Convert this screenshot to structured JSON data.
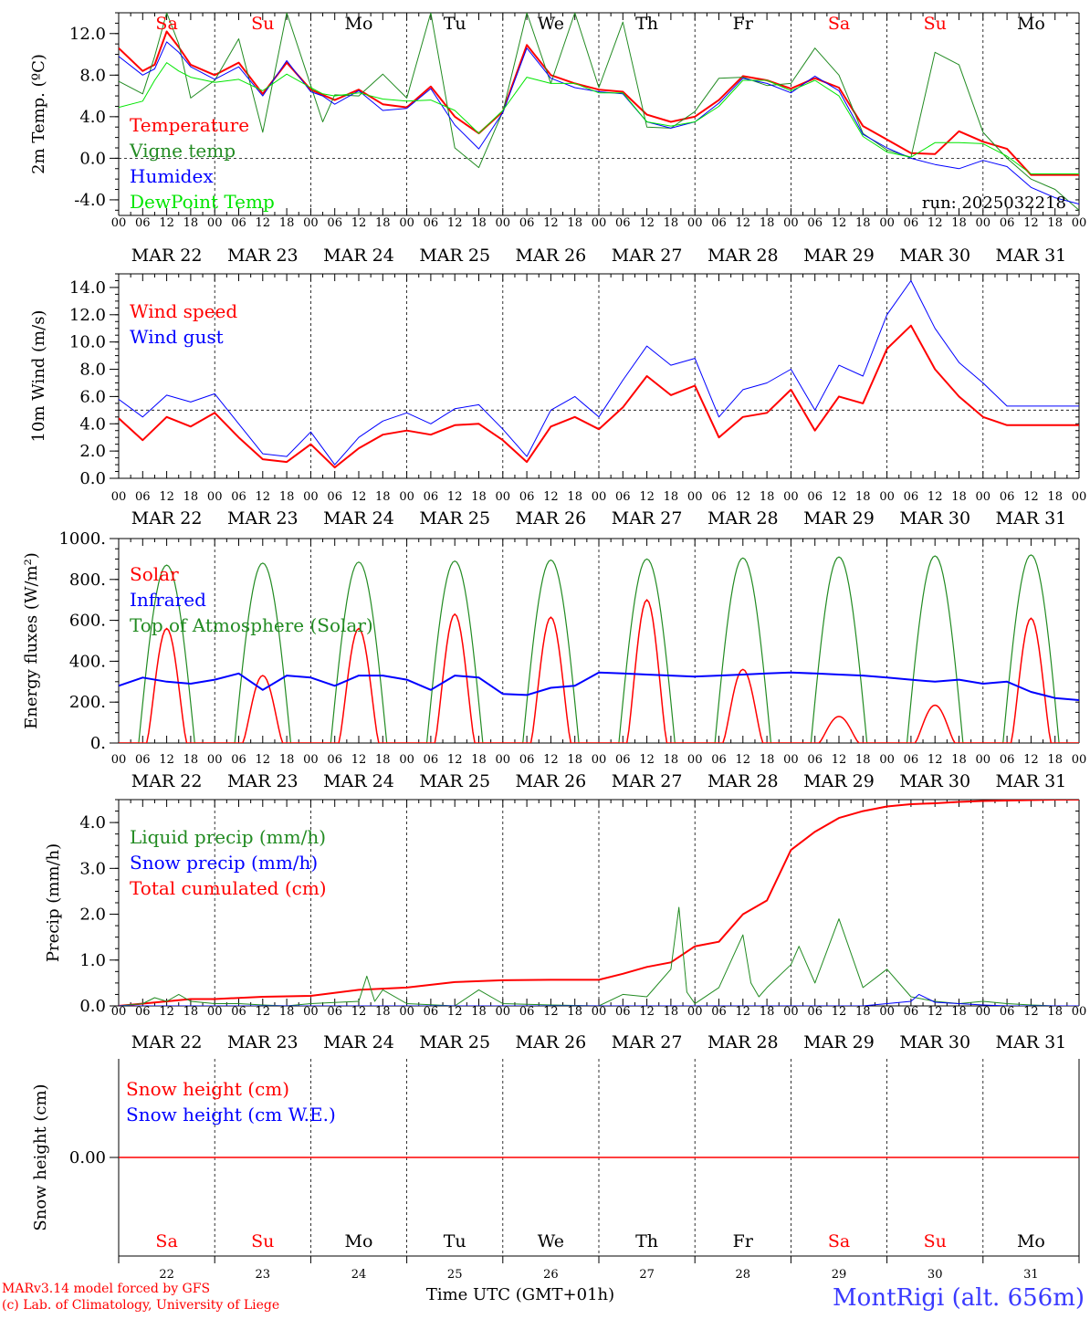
{
  "run_label": "run: 2025032218",
  "footer": {
    "model_line": "MARv3.14 model forced by GFS",
    "credit_line": "(c) Lab. of Climatology, University of Liege",
    "xlabel": "Time UTC (GMT+01h)",
    "station": "MontRigi (alt. 656m)"
  },
  "day_names": [
    {
      "label": "Sa",
      "color": "#ff0000"
    },
    {
      "label": "Su",
      "color": "#ff0000"
    },
    {
      "label": "Mo",
      "color": "#000000"
    },
    {
      "label": "Tu",
      "color": "#000000"
    },
    {
      "label": "We",
      "color": "#000000"
    },
    {
      "label": "Th",
      "color": "#000000"
    },
    {
      "label": "Fr",
      "color": "#000000"
    },
    {
      "label": "Sa",
      "color": "#ff0000"
    },
    {
      "label": "Su",
      "color": "#ff0000"
    },
    {
      "label": "Mo",
      "color": "#000000"
    }
  ],
  "date_labels": [
    "MAR 22",
    "MAR 23",
    "MAR 24",
    "MAR 25",
    "MAR 26",
    "MAR 27",
    "MAR 28",
    "MAR 29",
    "MAR 30",
    "MAR 31"
  ],
  "day_numbers": [
    "22",
    "23",
    "24",
    "25",
    "26",
    "27",
    "28",
    "29",
    "30",
    "31"
  ],
  "hour_ticks": [
    "00",
    "06",
    "12",
    "18"
  ],
  "hour_end": "00",
  "chart_data": [
    {
      "type": "line",
      "ylabel": "2m Temp. (ºC)",
      "ylim": [
        -5.5,
        14.0
      ],
      "yticks": [
        -4.0,
        0.0,
        4.0,
        8.0,
        12.0
      ],
      "ytick_labels": [
        "-4.0",
        "0.0",
        "4.0",
        "8.0",
        "12.0"
      ],
      "ref_line": 0.0,
      "x_unit": "hours since MAR 22 00 UTC",
      "legend": [
        {
          "label": "Temperature",
          "color": "#ff0000"
        },
        {
          "label": "Vigne temp",
          "color": "#228b22"
        },
        {
          "label": "Humidex",
          "color": "#0000ff"
        },
        {
          "label": "DewPoint Temp",
          "color": "#00e600"
        }
      ],
      "series": [
        {
          "name": "Temperature",
          "color": "#ff0000",
          "width": 2,
          "x": [
            0,
            6,
            9,
            12,
            15,
            18,
            24,
            30,
            36,
            42,
            48,
            51,
            54,
            60,
            66,
            72,
            78,
            84,
            90,
            96,
            102,
            108,
            114,
            120,
            126,
            132,
            138,
            144,
            150,
            156,
            162,
            168,
            174,
            180,
            186,
            192,
            198,
            204,
            210,
            216,
            222,
            228,
            234,
            240
          ],
          "y": [
            10.6,
            8.4,
            9.0,
            12.2,
            10.7,
            9.0,
            8.0,
            9.2,
            6.2,
            9.2,
            6.6,
            6.1,
            5.6,
            6.6,
            5.2,
            4.9,
            6.9,
            4.0,
            2.4,
            4.5,
            10.9,
            8.0,
            7.2,
            6.6,
            6.4,
            4.2,
            3.5,
            4.0,
            5.6,
            7.9,
            7.5,
            6.7,
            7.7,
            6.8,
            3.1,
            1.8,
            0.5,
            0.4,
            2.6,
            1.6,
            0.9,
            -1.6,
            -1.6,
            -1.6
          ]
        },
        {
          "name": "Vigne temp",
          "color": "#228b22",
          "width": 1,
          "x": [
            0,
            6,
            9,
            12,
            15,
            18,
            24,
            30,
            36,
            42,
            48,
            51,
            54,
            60,
            66,
            72,
            78,
            84,
            90,
            96,
            102,
            108,
            114,
            120,
            126,
            132,
            138,
            144,
            150,
            156,
            162,
            168,
            174,
            180,
            186,
            192,
            198,
            204,
            210,
            216,
            222,
            228,
            234,
            240
          ],
          "y": [
            7.4,
            6.2,
            9.8,
            14.0,
            11.0,
            5.8,
            7.5,
            11.5,
            2.5,
            14.0,
            7.0,
            3.5,
            6.1,
            6.0,
            8.1,
            5.8,
            14.0,
            1.0,
            -0.9,
            4.5,
            14.0,
            7.2,
            14.0,
            6.8,
            13.1,
            3.0,
            2.9,
            4.5,
            7.7,
            7.8,
            7.0,
            7.2,
            10.6,
            8.0,
            2.4,
            0.8,
            0.1,
            10.2,
            9.0,
            2.5,
            0.0,
            -2.0,
            -3.0,
            -5.0
          ]
        },
        {
          "name": "Humidex",
          "color": "#0000ff",
          "width": 1,
          "x": [
            0,
            6,
            9,
            12,
            15,
            18,
            24,
            30,
            36,
            42,
            48,
            51,
            54,
            60,
            66,
            72,
            78,
            84,
            90,
            96,
            102,
            108,
            114,
            120,
            126,
            132,
            138,
            144,
            150,
            156,
            162,
            168,
            174,
            180,
            186,
            192,
            198,
            204,
            210,
            216,
            222,
            228,
            234,
            240
          ],
          "y": [
            9.8,
            8.0,
            8.6,
            11.2,
            10.2,
            8.8,
            7.6,
            8.8,
            6.0,
            9.4,
            6.4,
            6.0,
            5.2,
            6.5,
            4.6,
            4.8,
            6.7,
            3.2,
            0.9,
            4.4,
            10.6,
            7.7,
            6.8,
            6.4,
            6.2,
            3.5,
            2.9,
            3.5,
            5.3,
            7.7,
            7.2,
            6.3,
            7.9,
            6.5,
            2.3,
            1.0,
            0.0,
            -0.6,
            -1.0,
            -0.2,
            -0.8,
            -2.8,
            -3.8,
            -4.4
          ]
        },
        {
          "name": "DewPoint Temp",
          "color": "#00e600",
          "width": 1,
          "x": [
            0,
            6,
            9,
            12,
            15,
            18,
            24,
            30,
            36,
            42,
            48,
            51,
            54,
            60,
            66,
            72,
            78,
            84,
            90,
            96,
            102,
            108,
            114,
            120,
            126,
            132,
            138,
            144,
            150,
            156,
            162,
            168,
            174,
            180,
            186,
            192,
            198,
            204,
            210,
            216,
            222,
            228,
            234,
            240
          ],
          "y": [
            4.9,
            5.5,
            7.5,
            9.2,
            8.4,
            7.8,
            7.3,
            7.6,
            6.5,
            8.1,
            6.8,
            6.2,
            6.0,
            6.3,
            5.7,
            5.5,
            5.6,
            4.6,
            2.4,
            4.6,
            7.8,
            7.2,
            7.2,
            6.3,
            6.3,
            3.5,
            3.1,
            3.5,
            5.0,
            7.5,
            7.5,
            6.5,
            7.5,
            6.0,
            2.1,
            0.6,
            0.1,
            1.5,
            1.5,
            1.4,
            0.2,
            -1.5,
            -1.5,
            -1.5
          ]
        }
      ]
    },
    {
      "type": "line",
      "ylabel": "10m Wind (m/s)",
      "ylim": [
        0.0,
        15.0
      ],
      "yticks": [
        0.0,
        2.0,
        4.0,
        6.0,
        8.0,
        10.0,
        12.0,
        14.0
      ],
      "ytick_labels": [
        "0.0",
        "2.0",
        "4.0",
        "6.0",
        "8.0",
        "10.0",
        "12.0",
        "14.0"
      ],
      "ref_line": 5.0,
      "x_unit": "hours since MAR 22 00 UTC",
      "legend": [
        {
          "label": "Wind speed",
          "color": "#ff0000"
        },
        {
          "label": "Wind gust",
          "color": "#0000ff"
        }
      ],
      "series": [
        {
          "name": "Wind speed",
          "color": "#ff0000",
          "width": 2,
          "x": [
            0,
            6,
            12,
            18,
            24,
            30,
            36,
            42,
            48,
            54,
            60,
            66,
            72,
            78,
            84,
            90,
            96,
            102,
            108,
            114,
            120,
            126,
            132,
            138,
            144,
            150,
            156,
            162,
            168,
            174,
            180,
            186,
            192,
            198,
            204,
            210,
            216,
            222,
            228,
            234,
            240
          ],
          "y": [
            4.4,
            2.8,
            4.5,
            3.8,
            4.8,
            3.0,
            1.4,
            1.2,
            2.5,
            0.8,
            2.2,
            3.2,
            3.5,
            3.2,
            3.9,
            4.0,
            2.8,
            1.2,
            3.8,
            4.5,
            3.6,
            5.2,
            7.5,
            6.1,
            6.8,
            3.0,
            4.5,
            4.8,
            6.5,
            3.5,
            6.0,
            5.5,
            9.5,
            11.2,
            8.0,
            6.0,
            4.5,
            3.9,
            3.9,
            3.9,
            3.9
          ]
        },
        {
          "name": "Wind gust",
          "color": "#0000ff",
          "width": 1,
          "x": [
            0,
            6,
            12,
            18,
            24,
            30,
            36,
            42,
            48,
            54,
            60,
            66,
            72,
            78,
            84,
            90,
            96,
            102,
            108,
            114,
            120,
            126,
            132,
            138,
            144,
            150,
            156,
            162,
            168,
            174,
            180,
            186,
            192,
            198,
            204,
            210,
            216,
            222,
            228,
            234,
            240
          ],
          "y": [
            5.8,
            4.5,
            6.1,
            5.6,
            6.2,
            4.0,
            1.8,
            1.6,
            3.4,
            1.0,
            3.0,
            4.2,
            4.8,
            4.0,
            5.1,
            5.4,
            3.6,
            1.6,
            5.0,
            6.0,
            4.5,
            7.2,
            9.7,
            8.3,
            8.8,
            4.5,
            6.5,
            7.0,
            8.0,
            5.0,
            8.3,
            7.5,
            12.0,
            14.5,
            11.0,
            8.5,
            7.0,
            5.3,
            5.3,
            5.3,
            5.3
          ]
        }
      ]
    },
    {
      "type": "line",
      "ylabel": "Energy fluxes (W/m²)",
      "ylim": [
        0,
        1000
      ],
      "yticks": [
        0,
        200,
        400,
        600,
        800,
        1000
      ],
      "ytick_labels": [
        "0.",
        "200.",
        "400.",
        "600.",
        "800.",
        "1000."
      ],
      "x_unit": "hours since MAR 22 00 UTC",
      "legend": [
        {
          "label": "Solar",
          "color": "#ff0000"
        },
        {
          "label": "Infrared",
          "color": "#0000ff"
        },
        {
          "label": "Top of Atmosphere (Solar)",
          "color": "#228b22"
        }
      ],
      "toa_peaks": [
        870,
        880,
        885,
        890,
        895,
        900,
        905,
        910,
        915,
        920
      ],
      "solar_peaks": [
        560,
        330,
        560,
        630,
        615,
        700,
        360,
        130,
        185,
        610
      ],
      "series": [
        {
          "name": "Infrared",
          "color": "#0000ff",
          "width": 2,
          "x": [
            0,
            6,
            12,
            18,
            24,
            30,
            36,
            42,
            48,
            54,
            60,
            66,
            72,
            78,
            84,
            90,
            96,
            102,
            108,
            114,
            120,
            126,
            132,
            138,
            144,
            150,
            156,
            162,
            168,
            174,
            180,
            186,
            192,
            198,
            204,
            210,
            216,
            222,
            228,
            234,
            240
          ],
          "y": [
            280,
            320,
            300,
            290,
            310,
            340,
            260,
            330,
            320,
            280,
            330,
            330,
            310,
            260,
            330,
            320,
            240,
            235,
            270,
            280,
            345,
            340,
            335,
            330,
            325,
            330,
            335,
            340,
            345,
            340,
            335,
            330,
            320,
            310,
            300,
            310,
            290,
            300,
            250,
            220,
            210
          ]
        }
      ]
    },
    {
      "type": "line",
      "ylabel": "Precip (mm/h)",
      "ylim": [
        0.0,
        4.5
      ],
      "yticks": [
        0.0,
        1.0,
        2.0,
        3.0,
        4.0
      ],
      "ytick_labels": [
        "0.0",
        "1.0",
        "2.0",
        "3.0",
        "4.0"
      ],
      "x_unit": "hours since MAR 22 00 UTC",
      "legend": [
        {
          "label": "Liquid precip (mm/h)",
          "color": "#228b22"
        },
        {
          "label": "Snow precip (mm/h)",
          "color": "#0000ff"
        },
        {
          "label": "Total cumulated (cm)",
          "color": "#ff0000"
        }
      ],
      "series": [
        {
          "name": "Total cumulated (cm)",
          "color": "#ff0000",
          "width": 2,
          "x": [
            0,
            6,
            12,
            18,
            24,
            36,
            48,
            60,
            72,
            84,
            96,
            108,
            120,
            126,
            132,
            138,
            144,
            150,
            156,
            162,
            168,
            174,
            180,
            186,
            192,
            198,
            204,
            210,
            216,
            222,
            228,
            234,
            240
          ],
          "y": [
            0.0,
            0.05,
            0.1,
            0.15,
            0.15,
            0.2,
            0.22,
            0.35,
            0.4,
            0.52,
            0.56,
            0.57,
            0.57,
            0.7,
            0.85,
            0.95,
            1.3,
            1.4,
            2.0,
            2.3,
            3.4,
            3.8,
            4.1,
            4.25,
            4.35,
            4.4,
            4.42,
            4.45,
            4.47,
            4.48,
            4.49,
            4.5,
            4.5
          ]
        },
        {
          "name": "Liquid precip (mm/h)",
          "color": "#228b22",
          "width": 1,
          "x": [
            0,
            6,
            9,
            12,
            15,
            18,
            24,
            30,
            36,
            42,
            48,
            60,
            62,
            64,
            66,
            72,
            84,
            90,
            96,
            108,
            120,
            126,
            132,
            138,
            140,
            142,
            144,
            150,
            156,
            158,
            160,
            162,
            168,
            170,
            174,
            180,
            186,
            192,
            198,
            204,
            210,
            216,
            222,
            228,
            234,
            240
          ],
          "y": [
            0.0,
            0.05,
            0.18,
            0.1,
            0.25,
            0.1,
            0.05,
            0.05,
            0.02,
            0.0,
            0.05,
            0.1,
            0.65,
            0.1,
            0.35,
            0.05,
            0.0,
            0.35,
            0.05,
            0.02,
            0.0,
            0.25,
            0.2,
            0.8,
            2.15,
            0.3,
            0.05,
            0.4,
            1.55,
            0.5,
            0.2,
            0.4,
            0.9,
            1.3,
            0.5,
            1.9,
            0.4,
            0.8,
            0.2,
            0.1,
            0.05,
            0.1,
            0.05,
            0.02,
            0.0,
            0.0
          ]
        },
        {
          "name": "Snow precip (mm/h)",
          "color": "#0000ff",
          "width": 1,
          "x": [
            0,
            120,
            186,
            192,
            198,
            200,
            204,
            210,
            216,
            222,
            228,
            234,
            240
          ],
          "y": [
            0.0,
            0.0,
            0.0,
            0.05,
            0.1,
            0.25,
            0.08,
            0.05,
            0.02,
            0.0,
            0.0,
            0.0,
            0.0
          ]
        }
      ]
    },
    {
      "type": "line",
      "ylabel": "Snow height (cm)",
      "ylim": [
        -1.0,
        1.0
      ],
      "yticks": [
        0.0
      ],
      "ytick_labels": [
        "0.00"
      ],
      "x_unit": "hours since MAR 22 00 UTC",
      "legend": [
        {
          "label": "Snow height (cm)",
          "color": "#ff0000"
        },
        {
          "label": "Snow height (cm W.E.)",
          "color": "#0000ff"
        }
      ],
      "series": [
        {
          "name": "Snow height (cm)",
          "color": "#ff0000",
          "width": 1.5,
          "x": [
            0,
            240
          ],
          "y": [
            0.0,
            0.0
          ]
        }
      ]
    }
  ]
}
